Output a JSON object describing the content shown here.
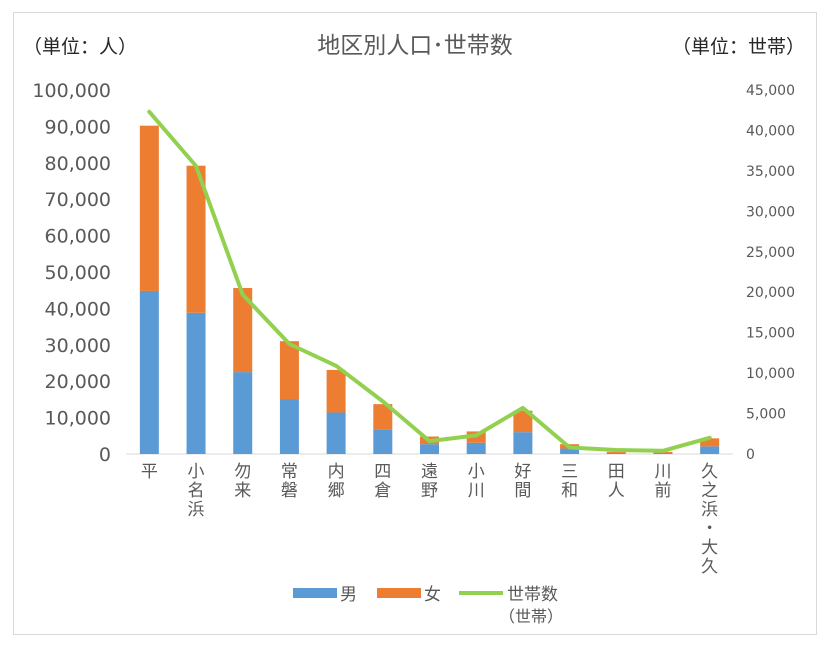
{
  "chart_data": {
    "type": "bar",
    "title": "地区別人口･世帯数",
    "ylabel_left": "（単位：人）",
    "ylabel_right": "（単位：世帯）",
    "categories": [
      "平",
      "小名浜",
      "勿来",
      "常磐",
      "内郷",
      "四倉",
      "遠野",
      "小川",
      "好間",
      "三和",
      "田人",
      "川前",
      "久之浜・大久"
    ],
    "series": [
      {
        "name": "男",
        "type": "bar",
        "stack": "pop",
        "axis": "left",
        "color": "#5b9bd5",
        "values": [
          44800,
          38800,
          22500,
          15100,
          11400,
          6700,
          2700,
          3100,
          6000,
          1500,
          300,
          300,
          2100
        ]
      },
      {
        "name": "女",
        "type": "bar",
        "stack": "pop",
        "axis": "left",
        "color": "#ed7d31",
        "values": [
          45400,
          40400,
          23100,
          15900,
          11700,
          7000,
          2100,
          3100,
          5900,
          1200,
          300,
          300,
          2200
        ]
      },
      {
        "name": "世帯数\n（世帯）",
        "type": "line",
        "axis": "right",
        "color": "#92d050",
        "values": [
          42300,
          35600,
          19700,
          13600,
          10900,
          6500,
          1600,
          2300,
          5700,
          800,
          500,
          400,
          2000
        ]
      }
    ],
    "ylim_left": [
      0,
      100000
    ],
    "yticks_left": [
      "0",
      "10,000",
      "20,000",
      "30,000",
      "40,000",
      "50,000",
      "60,000",
      "70,000",
      "80,000",
      "90,000",
      "100,000"
    ],
    "ylim_right": [
      0,
      45000
    ],
    "yticks_right": [
      "0",
      "5,000",
      "10,000",
      "15,000",
      "20,000",
      "25,000",
      "30,000",
      "35,000",
      "40,000",
      "45,000"
    ],
    "grid": false,
    "legend_position": "bottom"
  }
}
